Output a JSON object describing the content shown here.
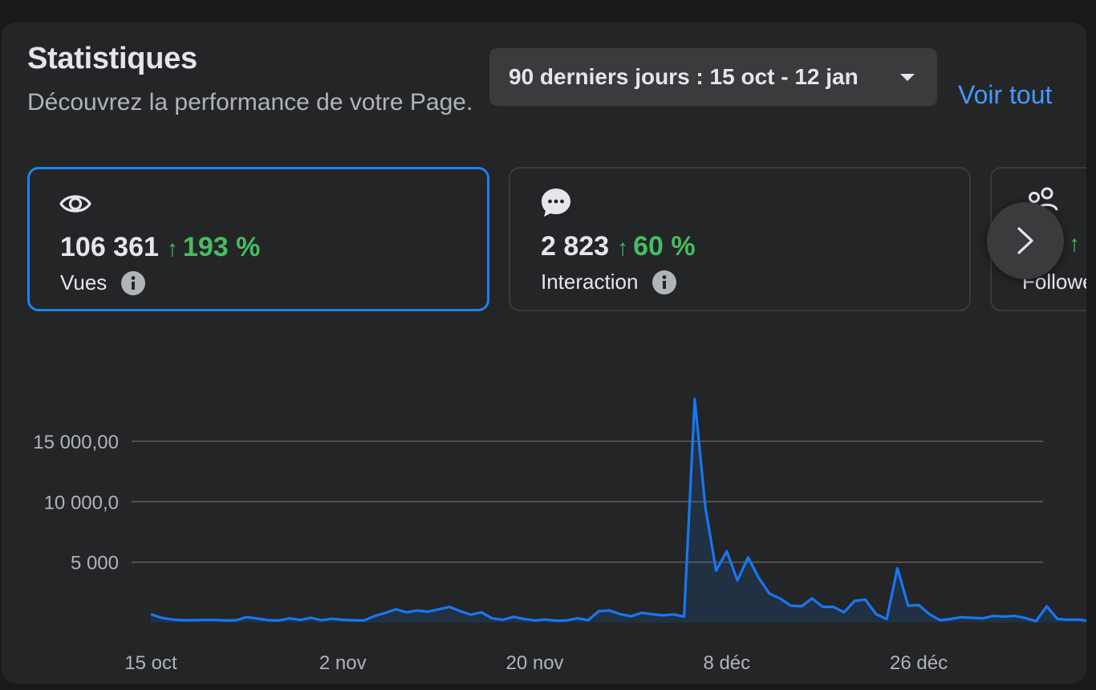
{
  "header": {
    "title": "Statistiques",
    "subtitle": "Découvrez la performance de votre Page.",
    "date_range": "90 derniers jours : 15 oct - 12 jan",
    "see_all": "Voir tout"
  },
  "cards": [
    {
      "value": "106 361",
      "arrow": "↑",
      "change": "193 %",
      "label": "Vues",
      "icon": "eye-icon",
      "active": true
    },
    {
      "value": "2 823",
      "arrow": "↑",
      "change": "60 %",
      "label": "Interaction",
      "icon": "chat-bubble-icon",
      "active": false
    },
    {
      "value": "",
      "arrow": "↑",
      "change": "",
      "label": "Followe",
      "icon": "people-icon",
      "active": false
    }
  ],
  "colors": {
    "accent": "#1b82f0",
    "positive": "#45bd62",
    "link": "#4599ff",
    "line": "#1877f2"
  },
  "chart_data": {
    "type": "area",
    "y_tick_labels": [
      "15 000,00",
      "10 000,0",
      "5 000"
    ],
    "y_ticks": [
      15000,
      10000,
      5000
    ],
    "ylim": [
      0,
      18500
    ],
    "grid": true,
    "x_tick_labels": [
      "15 oct",
      "2 nov",
      "20 nov",
      "8 déc",
      "26 déc"
    ],
    "x_tick_days": [
      0,
      18,
      36,
      54,
      72
    ],
    "x_domain": [
      0,
      82
    ],
    "values": [
      700,
      400,
      250,
      200,
      200,
      220,
      220,
      180,
      200,
      450,
      330,
      200,
      180,
      350,
      220,
      400,
      200,
      320,
      230,
      200,
      180,
      550,
      800,
      1100,
      850,
      1000,
      900,
      1100,
      1300,
      950,
      650,
      850,
      350,
      230,
      480,
      300,
      180,
      260,
      150,
      180,
      360,
      200,
      950,
      1000,
      700,
      520,
      800,
      700,
      600,
      680,
      500,
      18500,
      9500,
      4300,
      5900,
      3500,
      5400,
      3700,
      2400,
      2000,
      1400,
      1350,
      2000,
      1300,
      1300,
      850,
      1800,
      1900,
      700,
      300,
      4500,
      1400,
      1450,
      700,
      200,
      300,
      450,
      400,
      350,
      550,
      500,
      550,
      380,
      120,
      1350,
      300,
      240,
      250,
      120,
      400,
      200
    ]
  }
}
